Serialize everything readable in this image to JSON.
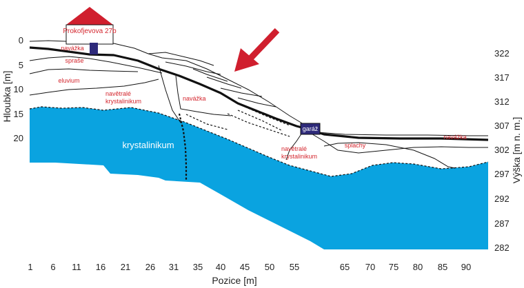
{
  "house": {
    "label": "Prokofjevova 27b"
  },
  "garage": {
    "label": "garáž"
  },
  "layers": {
    "navazka_top": "navážka",
    "sprase": "spraše",
    "eluvium": "eluvium",
    "navetrale_1": "navětralé",
    "navetrale_1b": "krystalinikum",
    "navazka_mid": "navážka",
    "krystalinikum": "krystalinikum",
    "navetrale_2": "navětralé",
    "navetrale_2b": "krystalinikum",
    "splachy": "splachy",
    "navazka_right": "navážka"
  },
  "axes": {
    "x_title": "Pozice [m]",
    "x_ticks": [
      "1",
      "6",
      "11",
      "16",
      "21",
      "26",
      "31",
      "35",
      "40",
      "45",
      "50",
      "55",
      "65",
      "70",
      "75",
      "80",
      "85",
      "90"
    ],
    "left_title": "Hloubka [m]",
    "left_ticks": [
      "0",
      "5",
      "10",
      "15",
      "20"
    ],
    "right_title": "Výška [m n. m.]",
    "right_ticks": [
      "322",
      "317",
      "312",
      "307",
      "302",
      "297",
      "292",
      "287",
      "282"
    ]
  },
  "colors": {
    "bedrock": "#0aa3e0",
    "label_red": "#d4262e",
    "house_roof": "#d01f2e",
    "garage": "#2e2a7a",
    "arrow": "#d01f2e"
  }
}
